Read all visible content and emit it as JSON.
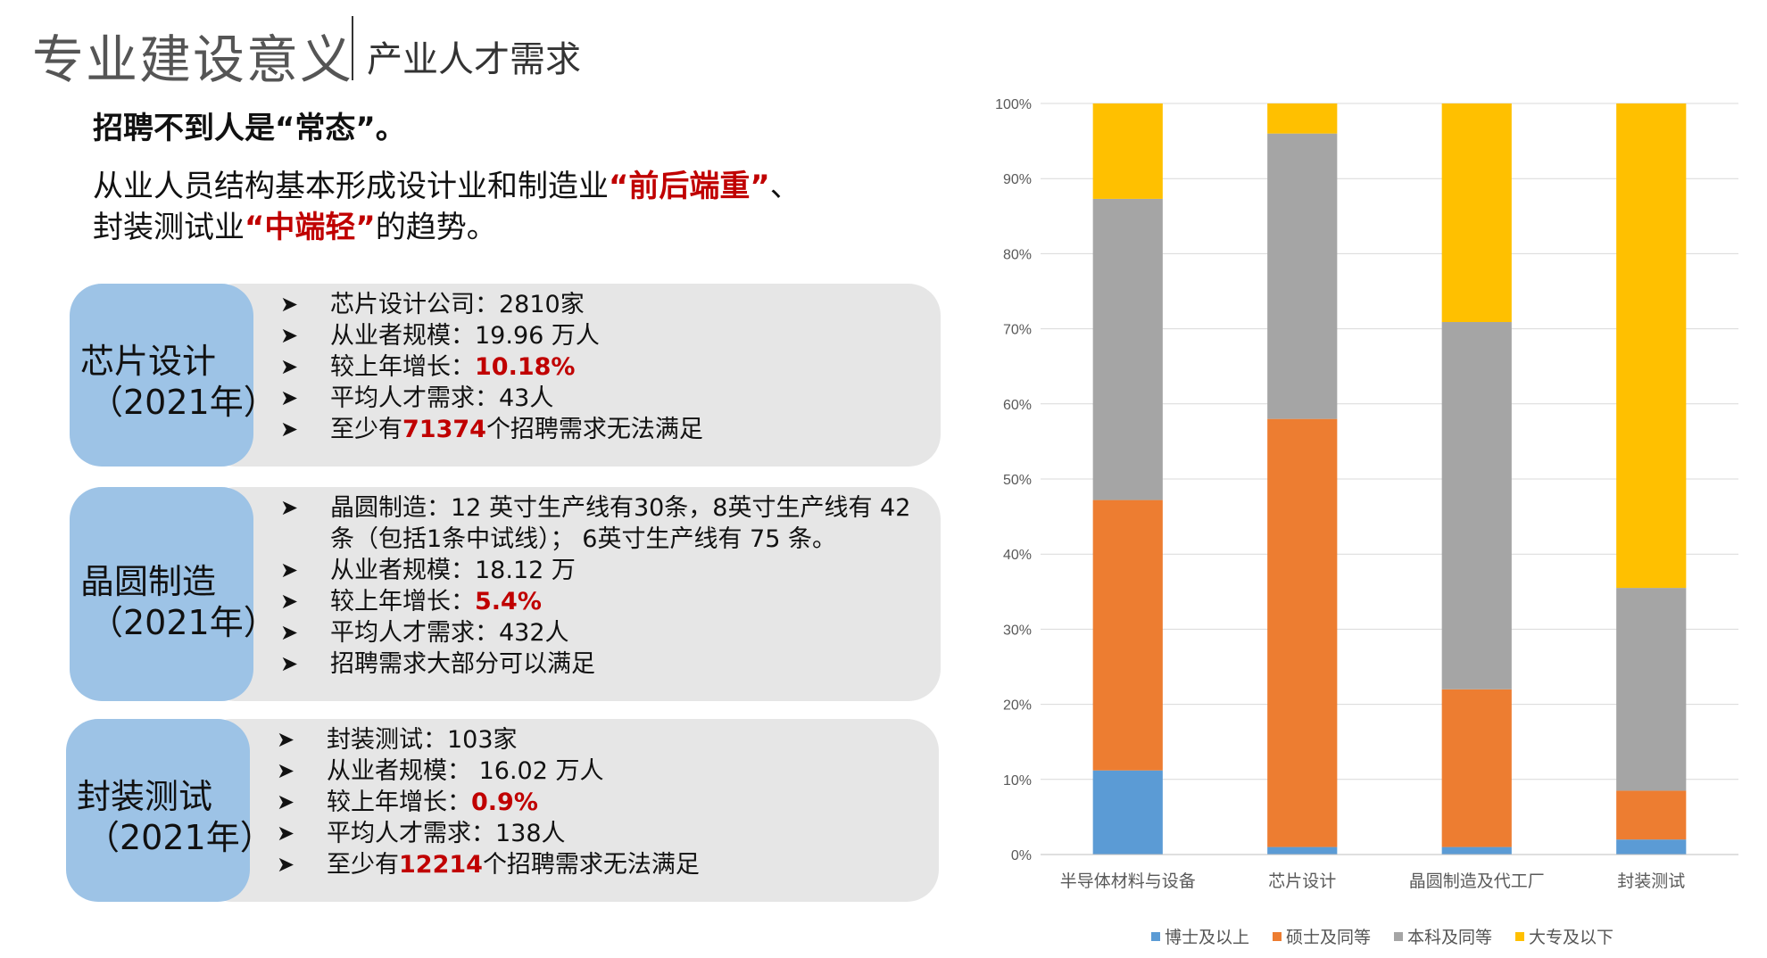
{
  "header": {
    "title": "专业建设意义",
    "subtitle": "产业人才需求"
  },
  "lead": "招聘不到人是“常态”。",
  "statement": {
    "line1_a": "从业人员结构基本形成设计业和制造业",
    "line1_b": "“前后端重”",
    "line1_c": "、",
    "line2_a": "封装测试业",
    "line2_b": "“中端轻”",
    "line2_c": "的趋势。"
  },
  "cards": [
    {
      "name": "芯片设计",
      "year": "（2021年）",
      "items": [
        {
          "text": "芯片设计公司：2810家"
        },
        {
          "text": "从业者规模：19.96 万人"
        },
        {
          "prefix": "较上年增长：",
          "highlight": "10.18%"
        },
        {
          "text": "平均人才需求：43人"
        },
        {
          "prefix": "至少有",
          "highlight": "71374",
          "suffix": "个招聘需求无法满足"
        }
      ]
    },
    {
      "name": "晶圆制造",
      "year": "（2021年）",
      "items": [
        {
          "text": "晶圆制造：12 英寸生产线有30条，8英寸生产线有 42",
          "continuation": "条（包括1条中试线）； 6英寸生产线有 75 条。"
        },
        {
          "text": "从业者规模：18.12 万"
        },
        {
          "prefix": "较上年增长：",
          "highlight": "5.4%"
        },
        {
          "text": "平均人才需求：432人"
        },
        {
          "text": "招聘需求大部分可以满足"
        }
      ]
    },
    {
      "name": "封装测试",
      "year": "（2021年）",
      "items": [
        {
          "text": "封装测试：103家"
        },
        {
          "text": "从业者规模： 16.02 万人"
        },
        {
          "prefix": "较上年增长：",
          "highlight": "0.9%"
        },
        {
          "text": "平均人才需求：138人"
        },
        {
          "prefix": "至少有",
          "highlight": "12214",
          "suffix": "个招聘需求无法满足"
        }
      ]
    }
  ],
  "chart_data": {
    "type": "bar",
    "stacked": true,
    "percent": true,
    "categories": [
      "半导体材料与设备",
      "芯片设计",
      "晶圆制造及代工厂",
      "封装测试"
    ],
    "series": [
      {
        "name": "博士及以上",
        "color": "#5b9bd5",
        "values": [
          11.2,
          1.0,
          1.0,
          2.0
        ]
      },
      {
        "name": "硕士及同等",
        "color": "#ed7d31",
        "values": [
          36.0,
          57.0,
          21.0,
          6.5
        ]
      },
      {
        "name": "本科及同等",
        "color": "#a5a5a5",
        "values": [
          40.1,
          38.0,
          48.9,
          27.0
        ]
      },
      {
        "name": "大专及以下",
        "color": "#ffc000",
        "values": [
          12.7,
          4.0,
          29.1,
          64.5
        ]
      }
    ],
    "ylim": [
      0,
      100
    ],
    "yticks": [
      "0%",
      "10%",
      "20%",
      "30%",
      "40%",
      "50%",
      "60%",
      "70%",
      "80%",
      "90%",
      "100%"
    ],
    "grid": true,
    "legend_position": "bottom"
  }
}
